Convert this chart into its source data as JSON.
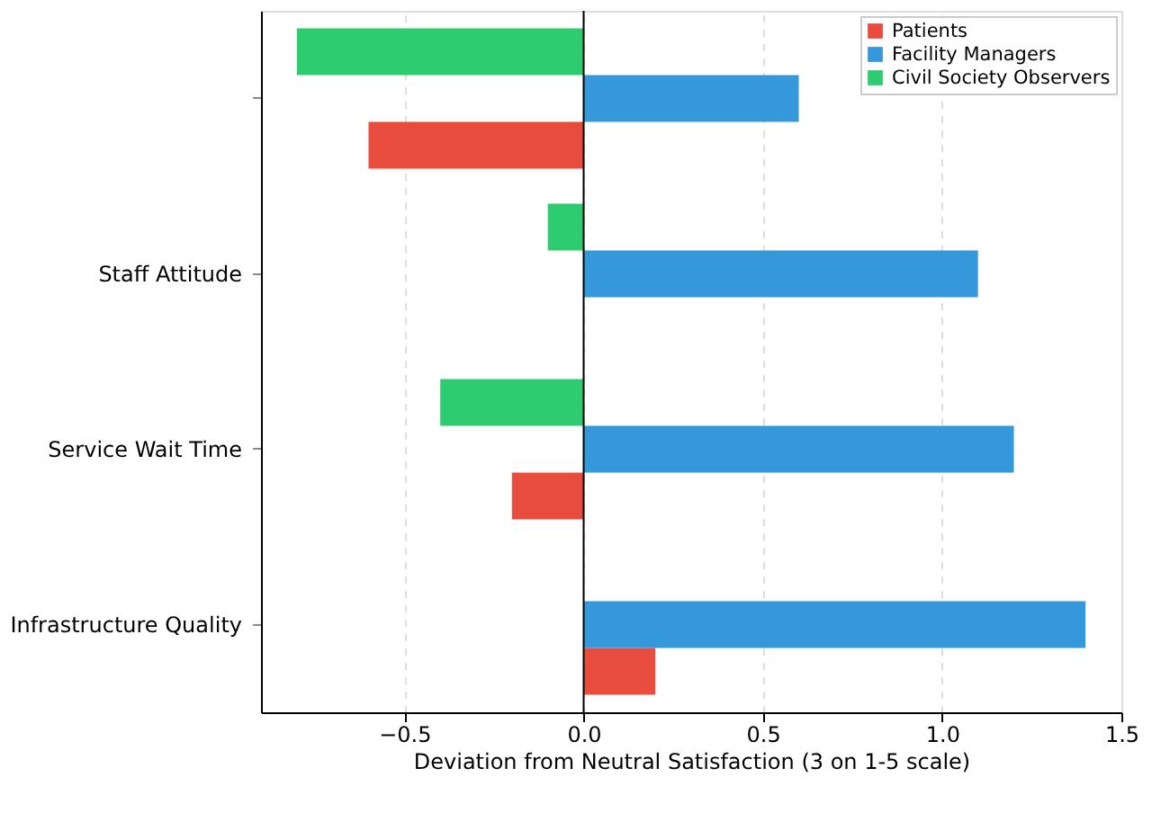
{
  "chart_data": {
    "type": "bar",
    "orientation": "horizontal",
    "xlabel": "Deviation from Neutral Satisfaction (3 on 1-5 scale)",
    "categories": [
      null,
      "Staff Attitude",
      "Service Wait Time",
      "Infrastructure Quality"
    ],
    "series": [
      {
        "name": "Patients",
        "color": "#e74c3c",
        "values": [
          -0.6,
          0,
          -0.2,
          0.2
        ]
      },
      {
        "name": "Facility Managers",
        "color": "#3498db",
        "values": [
          0.6,
          1.1,
          1.2,
          1.4
        ]
      },
      {
        "name": "Civil Society Observers",
        "color": "#2ecc71",
        "values": [
          -0.8,
          -0.1,
          -0.4,
          0
        ]
      }
    ],
    "xlim": [
      -0.9,
      1.5
    ],
    "xticks": [
      {
        "value": -0.5,
        "label": "−0.5"
      },
      {
        "value": 0,
        "label": "0.0"
      },
      0.5,
      {
        "value": 1,
        "label": "1.0"
      },
      1.5
    ],
    "grid": "x",
    "legend": "top right",
    "ref_lines": [
      {
        "axis": "x",
        "value": 0,
        "color": "#000000"
      }
    ]
  }
}
